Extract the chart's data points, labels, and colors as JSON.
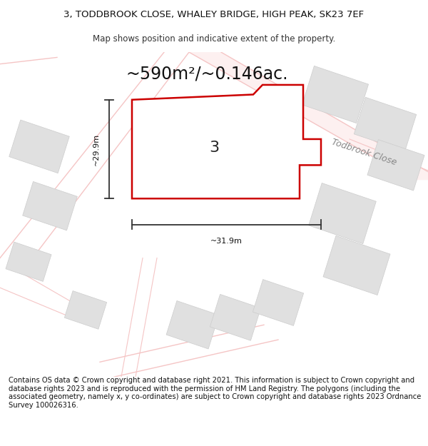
{
  "title_line1": "3, TODDBROOK CLOSE, WHALEY BRIDGE, HIGH PEAK, SK23 7EF",
  "title_line2": "Map shows position and indicative extent of the property.",
  "area_text": "~590m²/~0.146ac.",
  "label_3": "3",
  "dim_width": "~31.9m",
  "dim_height": "~29.9m",
  "road_label": "Todbrook Close",
  "footer_text": "Contains OS data © Crown copyright and database right 2021. This information is subject to Crown copyright and database rights 2023 and is reproduced with the permission of HM Land Registry. The polygons (including the associated geometry, namely x, y co-ordinates) are subject to Crown copyright and database rights 2023 Ordnance Survey 100026316.",
  "bg_color": "#ffffff",
  "map_bg": "#ffffff",
  "plot_fill": "#ffffff",
  "plot_edge": "#cc0000",
  "building_fill": "#e0e0e0",
  "green_fill": "#ddeedd",
  "road_line_color": "#f5c5c5",
  "dim_line_color": "#333333",
  "title_fontsize": 9.5,
  "subtitle_fontsize": 8.5,
  "area_fontsize": 17,
  "label_fontsize": 16,
  "dim_fontsize": 8,
  "road_fontsize": 9,
  "footer_fontsize": 7.2
}
